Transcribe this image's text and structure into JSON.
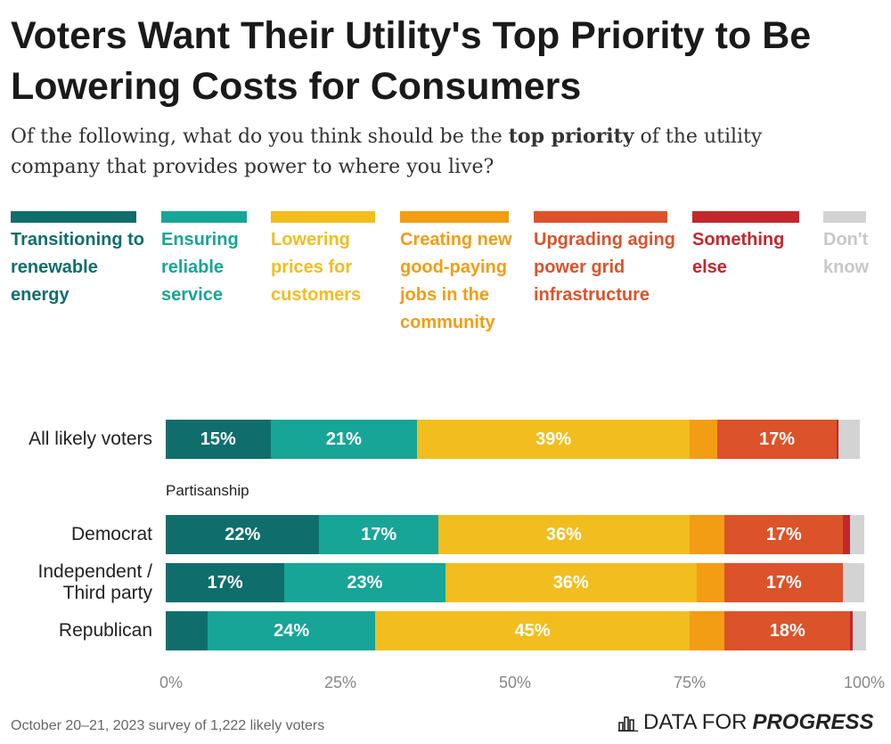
{
  "chart_data": {
    "type": "stacked_bar_horizontal",
    "title": "Voters Want Their Utility's Top Priority to Be Lowering Costs for Consumers",
    "subtitle_before": "Of the following, what do you think should be the ",
    "subtitle_bold": "top priority",
    "subtitle_after": " of the utility company that provides power to where you live?",
    "categories": [
      "All likely voters",
      "Democrat",
      "Independent / Third party",
      "Republican"
    ],
    "group_label": "Partisanship",
    "series": [
      {
        "name": "Transitioning to renewable energy",
        "color": "#0f6e6c",
        "values": [
          15,
          22,
          17,
          6
        ],
        "value_labels": [
          "15%",
          "22%",
          "17%",
          null
        ]
      },
      {
        "name": "Ensuring reliable service",
        "color": "#17a597",
        "values": [
          21,
          17,
          23,
          24
        ],
        "value_labels": [
          "21%",
          "17%",
          "23%",
          "24%"
        ]
      },
      {
        "name": "Lowering prices for customers",
        "color": "#f2bd1f",
        "values": [
          39,
          36,
          36,
          45
        ],
        "value_labels": [
          "39%",
          "36%",
          "36%",
          "45%"
        ]
      },
      {
        "name": "Creating new good-paying jobs in the community",
        "color": "#f29d13",
        "values": [
          4,
          5,
          4,
          5
        ],
        "value_labels": [
          null,
          null,
          null,
          null
        ]
      },
      {
        "name": "Upgrading aging power grid infrastructure",
        "color": "#dc522b",
        "values": [
          17,
          17,
          17,
          18
        ],
        "value_labels": [
          "17%",
          "17%",
          "17%",
          "18%"
        ]
      },
      {
        "name": "Something else",
        "color": "#c2272d",
        "values": [
          0.3,
          1,
          0,
          0.3
        ],
        "value_labels": [
          null,
          null,
          null,
          null
        ]
      },
      {
        "name": "Don't know",
        "color": "#d3d3d3",
        "values": [
          3,
          2,
          3,
          2
        ],
        "value_labels": [
          null,
          null,
          null,
          null
        ]
      }
    ],
    "xlim": [
      0,
      100
    ],
    "xticks": [
      {
        "value": 0,
        "label": "0%"
      },
      {
        "value": 25,
        "label": "25%"
      },
      {
        "value": 50,
        "label": "50%"
      },
      {
        "value": 75,
        "label": "75%"
      },
      {
        "value": 100,
        "label": "100%"
      }
    ],
    "footnote": "October 20–21, 2023 survey of 1,222 likely voters",
    "brand_regular": "DATA FOR",
    "brand_bold": "PROGRESS"
  }
}
